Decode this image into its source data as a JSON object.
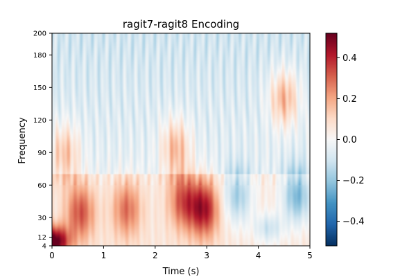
{
  "chart_data": {
    "type": "heatmap",
    "title": "ragit7-ragit8 Encoding",
    "xlabel": "Time (s)",
    "ylabel": "Frequency",
    "xlim": [
      0,
      5
    ],
    "ylim": [
      4,
      200
    ],
    "xticks": [
      0,
      1,
      2,
      3,
      4,
      5
    ],
    "xtick_labels": [
      "0",
      "1",
      "2",
      "3",
      "4",
      "5"
    ],
    "yticks": [
      4,
      12,
      30,
      60,
      90,
      120,
      150,
      180,
      200
    ],
    "ytick_labels": [
      "4",
      "12",
      "30",
      "60",
      "90",
      "120",
      "150",
      "180",
      "200"
    ],
    "colormap": "RdBu_r",
    "clim": [
      -0.52,
      0.52
    ],
    "colorbar_ticks": [
      0.4,
      0.2,
      0.0,
      -0.2,
      -0.4
    ],
    "colorbar_tick_labels": [
      "0.4",
      "0.2",
      "0.0",
      "−0.2",
      "−0.4"
    ],
    "grid": false,
    "features": [
      {
        "t": 0.05,
        "f": 8,
        "value": 0.5
      },
      {
        "t": 0.55,
        "f": 35,
        "value": 0.28
      },
      {
        "t": 1.45,
        "f": 38,
        "value": 0.24
      },
      {
        "t": 2.55,
        "f": 45,
        "value": 0.28
      },
      {
        "t": 2.95,
        "f": 38,
        "value": 0.38
      },
      {
        "t": 0.25,
        "f": 90,
        "value": 0.2
      },
      {
        "t": 2.4,
        "f": 95,
        "value": 0.22
      },
      {
        "t": 4.5,
        "f": 140,
        "value": 0.25
      },
      {
        "t": 4.75,
        "f": 50,
        "value": -0.28
      },
      {
        "t": 3.6,
        "f": 50,
        "value": -0.22
      },
      {
        "t": 4.2,
        "f": 20,
        "value": -0.16
      }
    ]
  }
}
